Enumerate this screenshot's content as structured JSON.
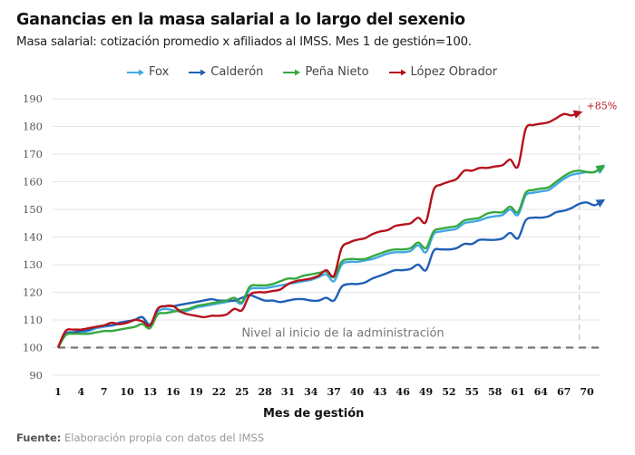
{
  "chart_data": {
    "type": "line",
    "title": "Ganancias en la masa salarial a lo largo del sexenio",
    "subtitle": "Masa salarial: cotización promedio x  afiliados al IMSS. Mes 1 de gestión=100.",
    "xlabel": "Mes de gestión",
    "ylabel": "",
    "xlim": [
      1,
      72
    ],
    "ylim": [
      90,
      190
    ],
    "x_ticks": [
      1,
      4,
      7,
      10,
      13,
      16,
      19,
      22,
      25,
      28,
      31,
      34,
      37,
      40,
      43,
      46,
      49,
      52,
      55,
      58,
      61,
      64,
      67,
      70
    ],
    "y_ticks": [
      90,
      100,
      110,
      120,
      130,
      140,
      150,
      160,
      170,
      180,
      190
    ],
    "grid": true,
    "legend_position": "top",
    "baseline": {
      "value": 100,
      "label": "Nivel al inicio de la administración"
    },
    "marker_line": {
      "x": 69
    },
    "annotation": {
      "text": "+85%",
      "series": "López Obrador"
    },
    "series": [
      {
        "name": "Fox",
        "color": "#41a8e6",
        "values": [
          100,
          105,
          105.5,
          105.5,
          106,
          107,
          107.5,
          108,
          108.5,
          109,
          110,
          111,
          108.5,
          113,
          114,
          113.5,
          113,
          113.5,
          114.5,
          115,
          115.5,
          116,
          116.5,
          117,
          116,
          121,
          121.5,
          121.5,
          122,
          122.5,
          123,
          123.5,
          124,
          124.5,
          125.5,
          126.5,
          124,
          130,
          131,
          131,
          131.5,
          132,
          133,
          134,
          134.5,
          134.5,
          135,
          137,
          134.5,
          141,
          142,
          142.5,
          143,
          145,
          145.5,
          146,
          147,
          147.5,
          148,
          150,
          148,
          155,
          156,
          156.5,
          157,
          159,
          161,
          162.5,
          163,
          163.5,
          163.5,
          165
        ]
      },
      {
        "name": "Calderón",
        "color": "#1f5fb5",
        "values": [
          100,
          105,
          105.5,
          106,
          106.5,
          107.5,
          108,
          108,
          109,
          109.5,
          110,
          111,
          108,
          114,
          115,
          115,
          115.5,
          116,
          116.5,
          117,
          117.5,
          117,
          117,
          117,
          118,
          119,
          118,
          117,
          117,
          116.5,
          117,
          117.5,
          117.5,
          117,
          117,
          118,
          117,
          122,
          123,
          123,
          123.5,
          125,
          126,
          127,
          128,
          128,
          128.5,
          130,
          128,
          135,
          135.5,
          135.5,
          136,
          137.5,
          137.5,
          139,
          139,
          139,
          139.5,
          141.5,
          139.5,
          146,
          147,
          147,
          147.5,
          149,
          149.5,
          150.5,
          152,
          152.5,
          151.5,
          153
        ]
      },
      {
        "name": "Peña Nieto",
        "color": "#36a83f",
        "values": [
          100,
          104.5,
          105,
          105,
          105,
          105.5,
          106,
          106,
          106.5,
          107,
          107.5,
          108.5,
          107,
          112,
          112.5,
          113,
          113.5,
          114,
          115,
          115.5,
          116,
          116.5,
          117,
          118,
          116.5,
          122,
          122.5,
          122.5,
          123,
          124,
          125,
          125,
          126,
          126.5,
          127,
          127.5,
          125.5,
          131,
          132,
          132,
          132,
          133,
          134,
          135,
          135.5,
          135.5,
          136,
          138,
          136,
          142,
          143,
          143.5,
          144,
          146,
          146.5,
          147,
          148.5,
          149,
          149,
          151,
          149,
          156,
          157,
          157.5,
          158,
          160,
          162,
          163.5,
          164,
          163.5,
          163.5,
          165.5
        ]
      },
      {
        "name": "López Obrador",
        "color": "#b5121b",
        "values": [
          100,
          106,
          106.5,
          106.5,
          107,
          107.5,
          108,
          109,
          108.5,
          109,
          110,
          109.5,
          108,
          114,
          115,
          115,
          113,
          112,
          111.5,
          111,
          111.5,
          111.5,
          112,
          114,
          113.5,
          119,
          120,
          120,
          120.5,
          121,
          123,
          124,
          124.5,
          125,
          126,
          128,
          126,
          136,
          138,
          139,
          139.5,
          141,
          142,
          142.5,
          144,
          144.5,
          145,
          147,
          145.5,
          157,
          159,
          160,
          161,
          164,
          164,
          165,
          165,
          165.5,
          166,
          168,
          165.5,
          179,
          180.5,
          181,
          181.5,
          183,
          184.5,
          184,
          185
        ]
      }
    ]
  },
  "footer": {
    "source_label": "Fuente:",
    "source_text": "Elaboración propia con datos del IMSS"
  }
}
